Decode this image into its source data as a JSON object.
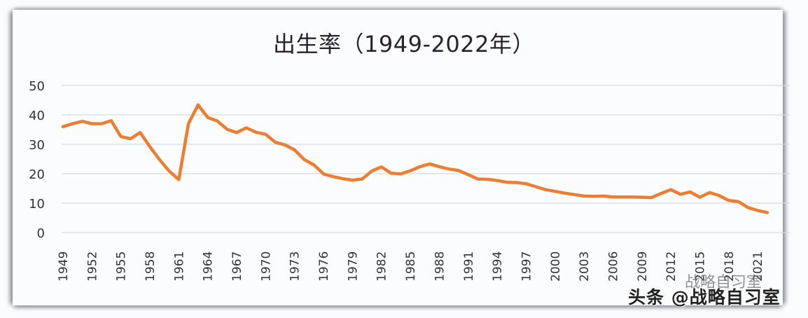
{
  "chart_data": {
    "type": "line",
    "title": "出生率（1949-2022年）",
    "xlabel": "",
    "ylabel": "",
    "ylim": [
      0,
      50
    ],
    "yticks": [
      0,
      10,
      20,
      30,
      40,
      50
    ],
    "xticks": [
      "1949",
      "1952",
      "1955",
      "1958",
      "1961",
      "1964",
      "1967",
      "1970",
      "1973",
      "1976",
      "1979",
      "1982",
      "1985",
      "1988",
      "1991",
      "1994",
      "1997",
      "2000",
      "2003",
      "2006",
      "2009",
      "2012",
      "2015",
      "2018",
      "2021"
    ],
    "grid": true,
    "legend": null,
    "line_color": "#ed7d31",
    "series": [
      {
        "name": "出生率",
        "x": [
          1949,
          1950,
          1951,
          1952,
          1953,
          1954,
          1955,
          1956,
          1957,
          1958,
          1959,
          1960,
          1961,
          1962,
          1963,
          1964,
          1965,
          1966,
          1967,
          1968,
          1969,
          1970,
          1971,
          1972,
          1973,
          1974,
          1975,
          1976,
          1977,
          1978,
          1979,
          1980,
          1981,
          1982,
          1983,
          1984,
          1985,
          1986,
          1987,
          1988,
          1989,
          1990,
          1991,
          1992,
          1993,
          1994,
          1995,
          1996,
          1997,
          1998,
          1999,
          2000,
          2001,
          2002,
          2003,
          2004,
          2005,
          2006,
          2007,
          2008,
          2009,
          2010,
          2011,
          2012,
          2013,
          2014,
          2015,
          2016,
          2017,
          2018,
          2019,
          2020,
          2021,
          2022
        ],
        "values": [
          36.0,
          37.0,
          37.8,
          37.0,
          37.0,
          38.0,
          32.6,
          31.9,
          34.0,
          29.2,
          24.8,
          20.9,
          18.0,
          37.0,
          43.4,
          39.1,
          37.9,
          35.1,
          34.0,
          35.6,
          34.1,
          33.4,
          30.7,
          29.8,
          28.1,
          24.8,
          23.0,
          19.9,
          19.0,
          18.3,
          17.8,
          18.2,
          20.9,
          22.3,
          20.2,
          19.9,
          21.0,
          22.4,
          23.3,
          22.4,
          21.6,
          21.1,
          19.7,
          18.2,
          18.1,
          17.7,
          17.1,
          17.0,
          16.6,
          15.6,
          14.6,
          14.0,
          13.4,
          12.9,
          12.4,
          12.3,
          12.4,
          12.1,
          12.1,
          12.1,
          12.0,
          11.9,
          13.3,
          14.6,
          13.0,
          13.8,
          12.0,
          13.6,
          12.6,
          10.9,
          10.5,
          8.5,
          7.5,
          6.8
        ]
      }
    ]
  },
  "watermark": {
    "main": "头条 @战略自习室",
    "faint": "战略自习室"
  }
}
